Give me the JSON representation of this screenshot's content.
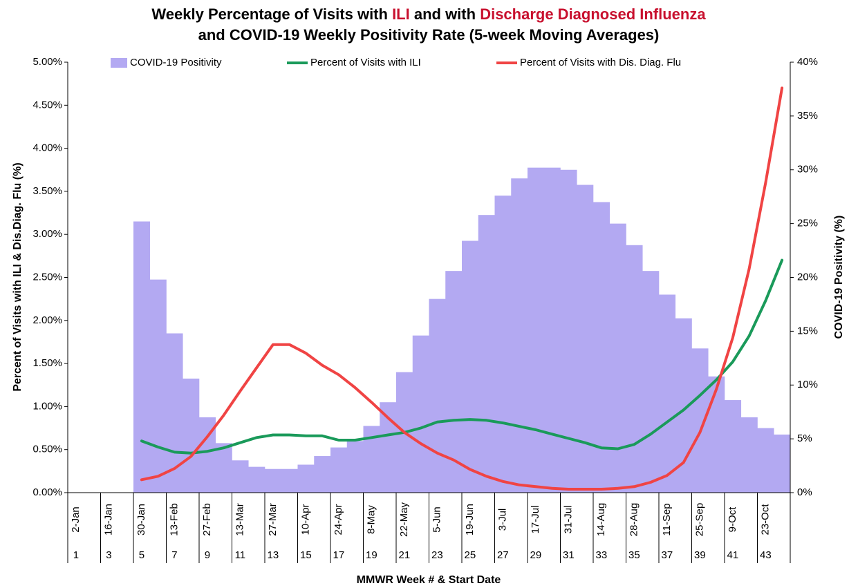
{
  "chart_data": {
    "type": "combo",
    "title_lines": [
      [
        {
          "text": "Weekly Percentage of Visits with ",
          "color": "#000000"
        },
        {
          "text": "ILI",
          "color": "#c8102e"
        },
        {
          "text": " and with ",
          "color": "#000000"
        },
        {
          "text": "Discharge Diagnosed Influenza",
          "color": "#c8102e"
        }
      ],
      [
        {
          "text": "and COVID-19 Weekly Positivity Rate (5-week Moving Averages)",
          "color": "#000000"
        }
      ]
    ],
    "x_label": "MMWR Week # & Start Date",
    "y_label": "Percent of Visits with ILI & Dis.Diag. Flu (%)",
    "y2_label": "COVID-19 Positivity (%)",
    "categories": [
      "2-Jan",
      null,
      "16-Jan",
      null,
      "30-Jan",
      null,
      "13-Feb",
      null,
      "27-Feb",
      null,
      "13-Mar",
      null,
      "27-Mar",
      null,
      "10-Apr",
      null,
      "24-Apr",
      null,
      "8-May",
      null,
      "22-May",
      null,
      "5-Jun",
      null,
      "19-Jun",
      null,
      "3-Jul",
      null,
      "17-Jul",
      null,
      "31-Jul",
      null,
      "14-Aug",
      null,
      "28-Aug",
      null,
      "11-Sep",
      null,
      "25-Sep",
      null,
      "9-Oct",
      null,
      "23-Oct",
      null
    ],
    "week_numbers": [
      1,
      null,
      3,
      null,
      5,
      null,
      7,
      null,
      9,
      null,
      11,
      null,
      13,
      null,
      15,
      null,
      17,
      null,
      19,
      null,
      21,
      null,
      23,
      null,
      25,
      null,
      27,
      null,
      29,
      null,
      31,
      null,
      33,
      null,
      35,
      null,
      37,
      null,
      39,
      null,
      41,
      null,
      43,
      null
    ],
    "series": [
      {
        "name": "COVID-19 Positivity",
        "type": "bar",
        "axis": "y2",
        "color": "#b3a9f2",
        "values": [
          null,
          null,
          null,
          null,
          25.2,
          19.8,
          14.8,
          10.6,
          7.0,
          4.6,
          3.0,
          2.4,
          2.2,
          2.2,
          2.6,
          3.4,
          4.2,
          4.8,
          6.2,
          8.4,
          11.2,
          14.6,
          18.0,
          20.6,
          23.4,
          25.8,
          27.6,
          29.2,
          30.2,
          30.2,
          30.0,
          28.6,
          27.0,
          25.0,
          23.0,
          20.6,
          18.4,
          16.2,
          13.4,
          10.8,
          8.6,
          7.0,
          6.0,
          5.4
        ]
      },
      {
        "name": "Percent of Visits with ILI",
        "type": "line",
        "color": "#1a9a5a",
        "values": [
          null,
          null,
          null,
          null,
          0.6,
          0.53,
          0.47,
          0.46,
          0.48,
          0.52,
          0.58,
          0.64,
          0.67,
          0.67,
          0.66,
          0.66,
          0.61,
          0.61,
          0.64,
          0.67,
          0.7,
          0.75,
          0.82,
          0.84,
          0.85,
          0.84,
          0.81,
          0.77,
          0.73,
          0.68,
          0.63,
          0.58,
          0.52,
          0.51,
          0.56,
          0.68,
          0.82,
          0.96,
          1.13,
          1.31,
          1.52,
          1.82,
          2.23,
          2.7
        ]
      },
      {
        "name": "Percent of Visits with Dis. Diag. Flu",
        "type": "line",
        "color": "#f04444",
        "values": [
          null,
          null,
          null,
          null,
          0.15,
          0.19,
          0.28,
          0.42,
          0.65,
          0.9,
          1.18,
          1.45,
          1.72,
          1.72,
          1.62,
          1.48,
          1.37,
          1.22,
          1.05,
          0.87,
          0.7,
          0.57,
          0.46,
          0.38,
          0.27,
          0.19,
          0.13,
          0.09,
          0.07,
          0.05,
          0.04,
          0.04,
          0.04,
          0.05,
          0.07,
          0.12,
          0.2,
          0.35,
          0.7,
          1.2,
          1.8,
          2.6,
          3.6,
          4.7
        ]
      }
    ],
    "ylim": [
      0,
      5
    ],
    "yticks": [
      {
        "value": 0,
        "label": "0.00%"
      },
      {
        "value": 0.5,
        "label": "0.50%"
      },
      {
        "value": 1,
        "label": "1.00%"
      },
      {
        "value": 1.5,
        "label": "1.50%"
      },
      {
        "value": 2,
        "label": "2.00%"
      },
      {
        "value": 2.5,
        "label": "2.50%"
      },
      {
        "value": 3,
        "label": "3.00%"
      },
      {
        "value": 3.5,
        "label": "3.50%"
      },
      {
        "value": 4,
        "label": "4.00%"
      },
      {
        "value": 4.5,
        "label": "4.50%"
      },
      {
        "value": 5,
        "label": "5.00%"
      }
    ],
    "y2lim": [
      0,
      40
    ],
    "y2ticks": [
      {
        "value": 0,
        "label": "0%"
      },
      {
        "value": 5,
        "label": "5%"
      },
      {
        "value": 10,
        "label": "10%"
      },
      {
        "value": 15,
        "label": "15%"
      },
      {
        "value": 20,
        "label": "20%"
      },
      {
        "value": 25,
        "label": "25%"
      },
      {
        "value": 30,
        "label": "30%"
      },
      {
        "value": 35,
        "label": "35%"
      },
      {
        "value": 40,
        "label": "40%"
      }
    ],
    "grid": false,
    "legend": "top"
  }
}
